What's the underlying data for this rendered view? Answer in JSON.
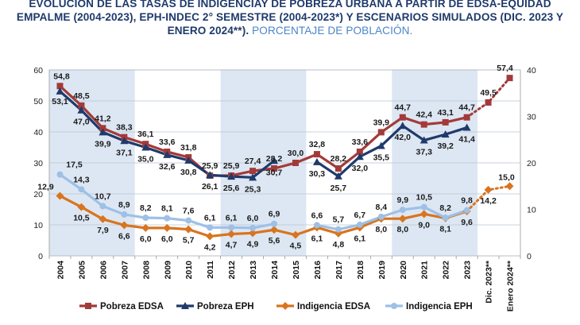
{
  "chart_data": {
    "type": "line",
    "title": "EVOLUCIÓN DE LAS TASAS DE INDIGENCIAY DE POBREZA URBANA A PARTIR DE EDSA-EQUIDAD EMPALME (2004-2023), EPH-INDEC 2° SEMESTRE (2004-2023*) Y ESCENARIOS SIMULADOS (DIC. 2023 Y ENERO 2024**).",
    "subtitle": "PORCENTAJE DE POBLACIÓN.",
    "categories": [
      "2004",
      "2005",
      "2006",
      "2007",
      "2008",
      "2009",
      "2010",
      "2011",
      "2012",
      "2013",
      "2014",
      "2015",
      "2016",
      "2017",
      "2018",
      "2019",
      "2020",
      "2021",
      "2022",
      "2023",
      "Dic. 2023**",
      "Enero 2024**"
    ],
    "y_left": {
      "min": 0,
      "max": 60,
      "ticks": [
        0,
        10,
        20,
        30,
        40,
        50,
        60
      ]
    },
    "y_right": {
      "min": 0,
      "max": 40,
      "ticks": [
        0,
        10,
        20,
        30,
        40
      ]
    },
    "grid": true,
    "legend_position": "bottom",
    "series": [
      {
        "name": "Pobreza EDSA",
        "axis": "left",
        "color": "#a33a3a",
        "marker": "square",
        "values": [
          54.8,
          48.5,
          41.2,
          38.3,
          36.1,
          33.6,
          31.8,
          25.9,
          25.9,
          27.4,
          28.2,
          30.0,
          32.8,
          28.2,
          33.6,
          39.9,
          44.7,
          42.4,
          43.1,
          44.7,
          null,
          null
        ],
        "projection": {
          "from": "2023",
          "values": [
            44.7,
            49.5,
            57.4
          ]
        }
      },
      {
        "name": "Pobreza EPH",
        "axis": "left",
        "color": "#1f3a6b",
        "marker": "triangle",
        "values": [
          53.1,
          47.0,
          39.9,
          37.1,
          35.0,
          32.6,
          30.8,
          26.1,
          25.6,
          25.3,
          30.7,
          null,
          30.3,
          25.7,
          32.0,
          35.5,
          42.0,
          37.3,
          39.2,
          41.4,
          null,
          null
        ]
      },
      {
        "name": "Indigencia EDSA",
        "axis": "right",
        "color": "#d9741f",
        "marker": "diamond",
        "values": [
          12.9,
          10.5,
          7.9,
          6.6,
          6.0,
          6.0,
          5.7,
          4.2,
          4.7,
          4.9,
          5.6,
          4.5,
          6.1,
          4.8,
          6.1,
          8.0,
          8.0,
          9.0,
          8.1,
          9.6,
          null,
          null
        ],
        "projection": {
          "from": "2023",
          "values": [
            9.6,
            14.2,
            15.0
          ]
        }
      },
      {
        "name": "Indigencia EPH",
        "axis": "right",
        "color": "#9ec0e6",
        "marker": "circle",
        "values": [
          17.5,
          14.3,
          10.7,
          8.9,
          8.2,
          8.1,
          7.6,
          6.1,
          6.1,
          6.0,
          6.9,
          null,
          6.6,
          5.7,
          6.7,
          8.4,
          9.9,
          10.5,
          8.2,
          9.8,
          null,
          null
        ]
      }
    ]
  }
}
